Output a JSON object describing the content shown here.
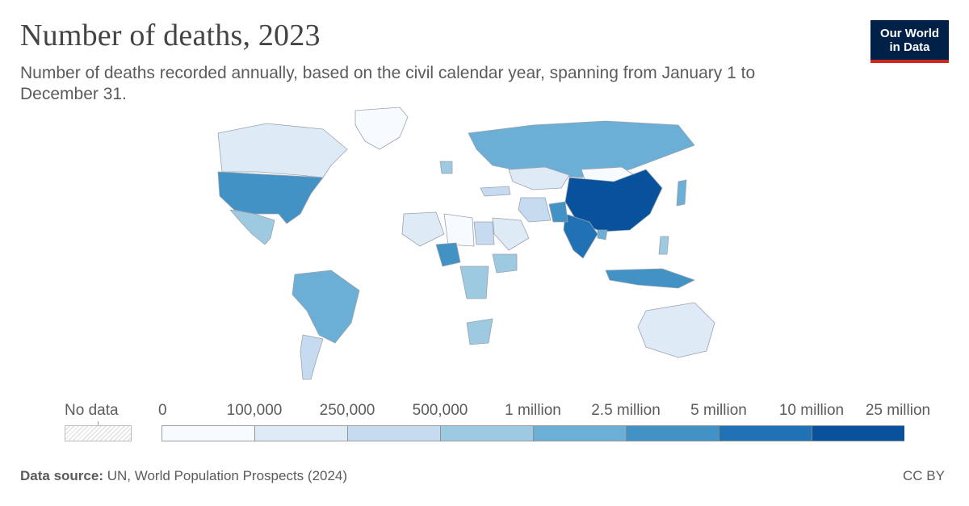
{
  "header": {
    "title": "Number of deaths, 2023",
    "subtitle": "Number of deaths recorded annually, based on the civil calendar year, spanning from January 1 to December 31."
  },
  "logo": {
    "line1": "Our World",
    "line2": "in Data",
    "bg_color": "#002147",
    "accent_color": "#ce261e"
  },
  "legend": {
    "no_data_label": "No data",
    "bins": [
      "0",
      "100,000",
      "250,000",
      "500,000",
      "1 million",
      "2.5 million",
      "5 million",
      "10 million",
      "25 million"
    ],
    "colors": [
      "#f7fbff",
      "#deebf7",
      "#c6dbef",
      "#9ecae1",
      "#6baed6",
      "#4292c6",
      "#2171b5",
      "#08519c"
    ]
  },
  "footer": {
    "source_label": "Data source:",
    "source_text": "UN, World Population Prospects (2024)",
    "license": "CC BY"
  },
  "chart_data": {
    "type": "choropleth",
    "year": 2023,
    "regions": [
      {
        "name": "China",
        "bin": 7
      },
      {
        "name": "India",
        "bin": 6
      },
      {
        "name": "United States",
        "bin": 5
      },
      {
        "name": "Nigeria",
        "bin": 5
      },
      {
        "name": "Pakistan",
        "bin": 5
      },
      {
        "name": "Indonesia",
        "bin": 5
      },
      {
        "name": "Russia",
        "bin": 4
      },
      {
        "name": "Brazil",
        "bin": 4
      },
      {
        "name": "Japan",
        "bin": 4
      },
      {
        "name": "Bangladesh",
        "bin": 4
      },
      {
        "name": "Mexico",
        "bin": 3
      },
      {
        "name": "Philippines",
        "bin": 3
      },
      {
        "name": "Ethiopia",
        "bin": 3
      },
      {
        "name": "DR Congo",
        "bin": 3
      },
      {
        "name": "South Africa",
        "bin": 3
      },
      {
        "name": "Germany",
        "bin": 3
      },
      {
        "name": "Canada",
        "bin": 1
      },
      {
        "name": "Australia",
        "bin": 1
      },
      {
        "name": "Argentina",
        "bin": 2
      },
      {
        "name": "Kazakhstan",
        "bin": 1
      },
      {
        "name": "Mongolia",
        "bin": 0
      },
      {
        "name": "Greenland",
        "bin": 0
      },
      {
        "name": "Saudi Arabia",
        "bin": 1
      },
      {
        "name": "Algeria",
        "bin": 1
      },
      {
        "name": "Libya",
        "bin": 0
      },
      {
        "name": "Egypt",
        "bin": 2
      },
      {
        "name": "Iran",
        "bin": 2
      },
      {
        "name": "Turkey",
        "bin": 2
      }
    ]
  }
}
